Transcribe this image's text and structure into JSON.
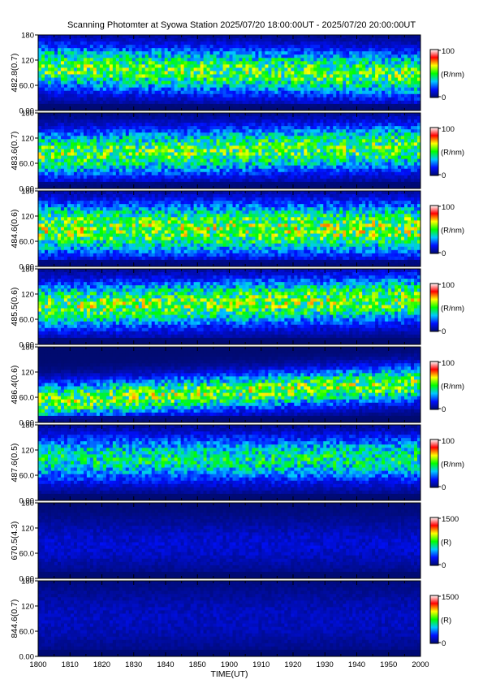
{
  "chart_data": {
    "type": "heatmap",
    "title": "Scanning Photomter at Syowa Station  2025/07/20 18:00:00UT - 2025/07/20 20:00:00UT",
    "xlabel": "TIME(UT)",
    "x_ticks": [
      "1800",
      "1810",
      "1820",
      "1830",
      "1840",
      "1850",
      "1900",
      "1910",
      "1920",
      "1930",
      "1940",
      "1950",
      "2000"
    ],
    "y_ticks": [
      "180",
      "120",
      "60.0",
      "0.00"
    ],
    "ylim": [
      0,
      180
    ],
    "colormap": [
      "#000a6e",
      "#0010ff",
      "#00c8ff",
      "#00ff00",
      "#ffff00",
      "#ff0000",
      "#ffffff"
    ],
    "panels": [
      {
        "ylabel": "482.8(0.7)",
        "cb_max": "100",
        "cb_min": "0",
        "cb_unit": "(R/nm)",
        "level": 0.55,
        "center": 0.52,
        "width": 0.45,
        "drift": -0.05
      },
      {
        "ylabel": "483.6(0.7)",
        "cb_max": "100",
        "cb_min": "0",
        "cb_unit": "(R/nm)",
        "level": 0.55,
        "center": 0.5,
        "width": 0.45,
        "drift": 0.05
      },
      {
        "ylabel": "484.6(0.6)",
        "cb_max": "100",
        "cb_min": "0",
        "cb_unit": "(R/nm)",
        "level": 0.6,
        "center": 0.5,
        "width": 0.5,
        "drift": 0.0
      },
      {
        "ylabel": "485.5(0.6)",
        "cb_max": "100",
        "cb_min": "0",
        "cb_unit": "(R/nm)",
        "level": 0.58,
        "center": 0.55,
        "width": 0.45,
        "drift": 0.05
      },
      {
        "ylabel": "486.4(0.6)",
        "cb_max": "100",
        "cb_min": "0",
        "cb_unit": "(R/nm)",
        "level": 0.58,
        "center": 0.4,
        "width": 0.35,
        "drift": 0.12
      },
      {
        "ylabel": "487.6(0.5)",
        "cb_max": "100",
        "cb_min": "0",
        "cb_unit": "(R/nm)",
        "level": 0.45,
        "center": 0.55,
        "width": 0.45,
        "drift": 0.0
      },
      {
        "ylabel": "670.5(4.3)",
        "cb_max": "1500",
        "cb_min": "0",
        "cb_unit": "(R)",
        "level": 0.12,
        "center": 0.45,
        "width": 0.5,
        "drift": 0.0
      },
      {
        "ylabel": "844.6(0.7)",
        "cb_max": "1500",
        "cb_min": "0",
        "cb_unit": "(R)",
        "level": 0.1,
        "center": 0.5,
        "width": 0.6,
        "drift": 0.0
      }
    ]
  }
}
